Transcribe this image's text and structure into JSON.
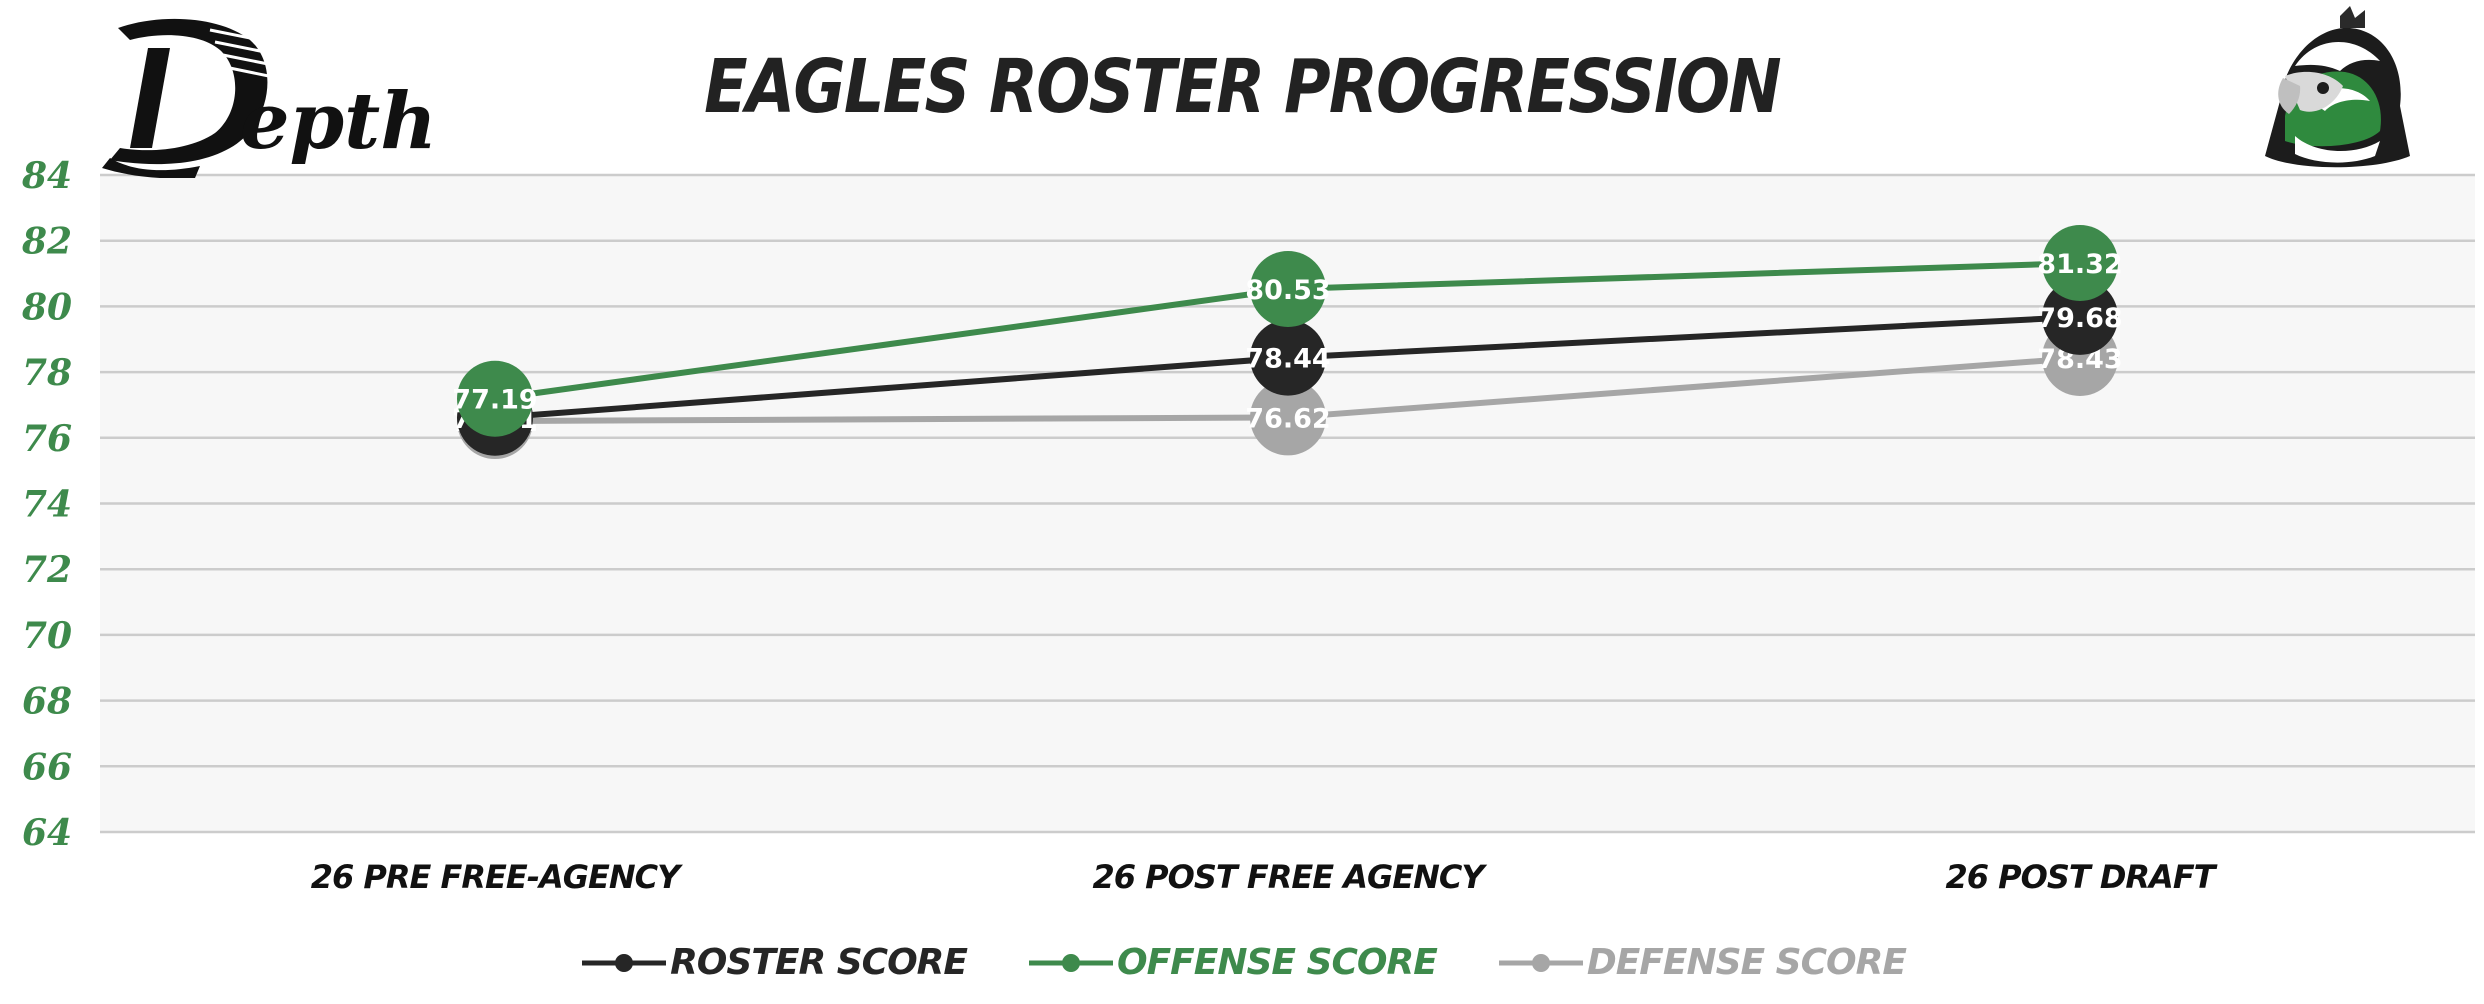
{
  "title": "EAGLES ROSTER PROGRESSION",
  "logo_text": "Depth",
  "chart_data": {
    "type": "line",
    "title": "EAGLES ROSTER PROGRESSION",
    "categories": [
      "26 PRE FREE-AGENCY",
      "26 POST FREE AGENCY",
      "26 POST DRAFT"
    ],
    "series": [
      {
        "name": "ROSTER SCORE",
        "values": [
          76.61,
          78.44,
          79.68
        ],
        "color": "#262626"
      },
      {
        "name": "OFFENSE SCORE",
        "values": [
          77.19,
          80.53,
          81.32
        ],
        "color": "#3e8a4c"
      },
      {
        "name": "DEFENSE SCORE",
        "values": [
          76.51,
          76.62,
          78.43
        ],
        "color": "#a6a6a6"
      }
    ],
    "yticks": [
      "64",
      "66",
      "68",
      "70",
      "72",
      "74",
      "76",
      "78",
      "80",
      "82",
      "84"
    ],
    "ylim": [
      64,
      84
    ],
    "grid": true,
    "legend": "bottom",
    "colors": {
      "tick_labels": "#3e8a4c",
      "plot_background": "#f7f7f7",
      "gridline": "#cccccc"
    }
  }
}
